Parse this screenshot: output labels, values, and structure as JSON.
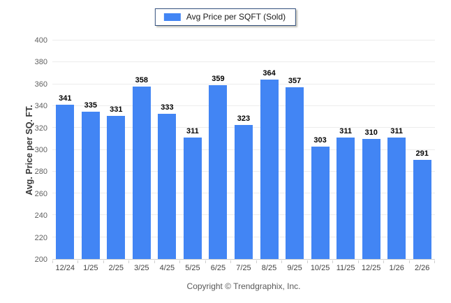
{
  "legend": {
    "label": "Avg Price per SQFT (Sold)",
    "swatch_color": "#4285f4"
  },
  "y_axis": {
    "title": "Avg. Price per SQ. FT."
  },
  "footer": {
    "copyright": "Copyright © Trendgraphix, Inc."
  },
  "chart_data": {
    "type": "bar",
    "title": "Avg Price per SQFT (Sold)",
    "categories": [
      "12/24",
      "1/25",
      "2/25",
      "3/25",
      "4/25",
      "5/25",
      "6/25",
      "7/25",
      "8/25",
      "9/25",
      "10/25",
      "11/25",
      "12/25",
      "1/26",
      "2/26"
    ],
    "values": [
      341,
      335,
      331,
      358,
      333,
      311,
      359,
      323,
      364,
      357,
      303,
      311,
      310,
      311,
      291
    ],
    "xlabel": "",
    "ylabel": "Avg. Price per SQ. FT.",
    "ylim": [
      200,
      400
    ],
    "ytick_step": 20,
    "bar_color": "#4285f4",
    "grid": "horizontal",
    "legend_position": "top-center",
    "value_labels": "above-bars"
  }
}
